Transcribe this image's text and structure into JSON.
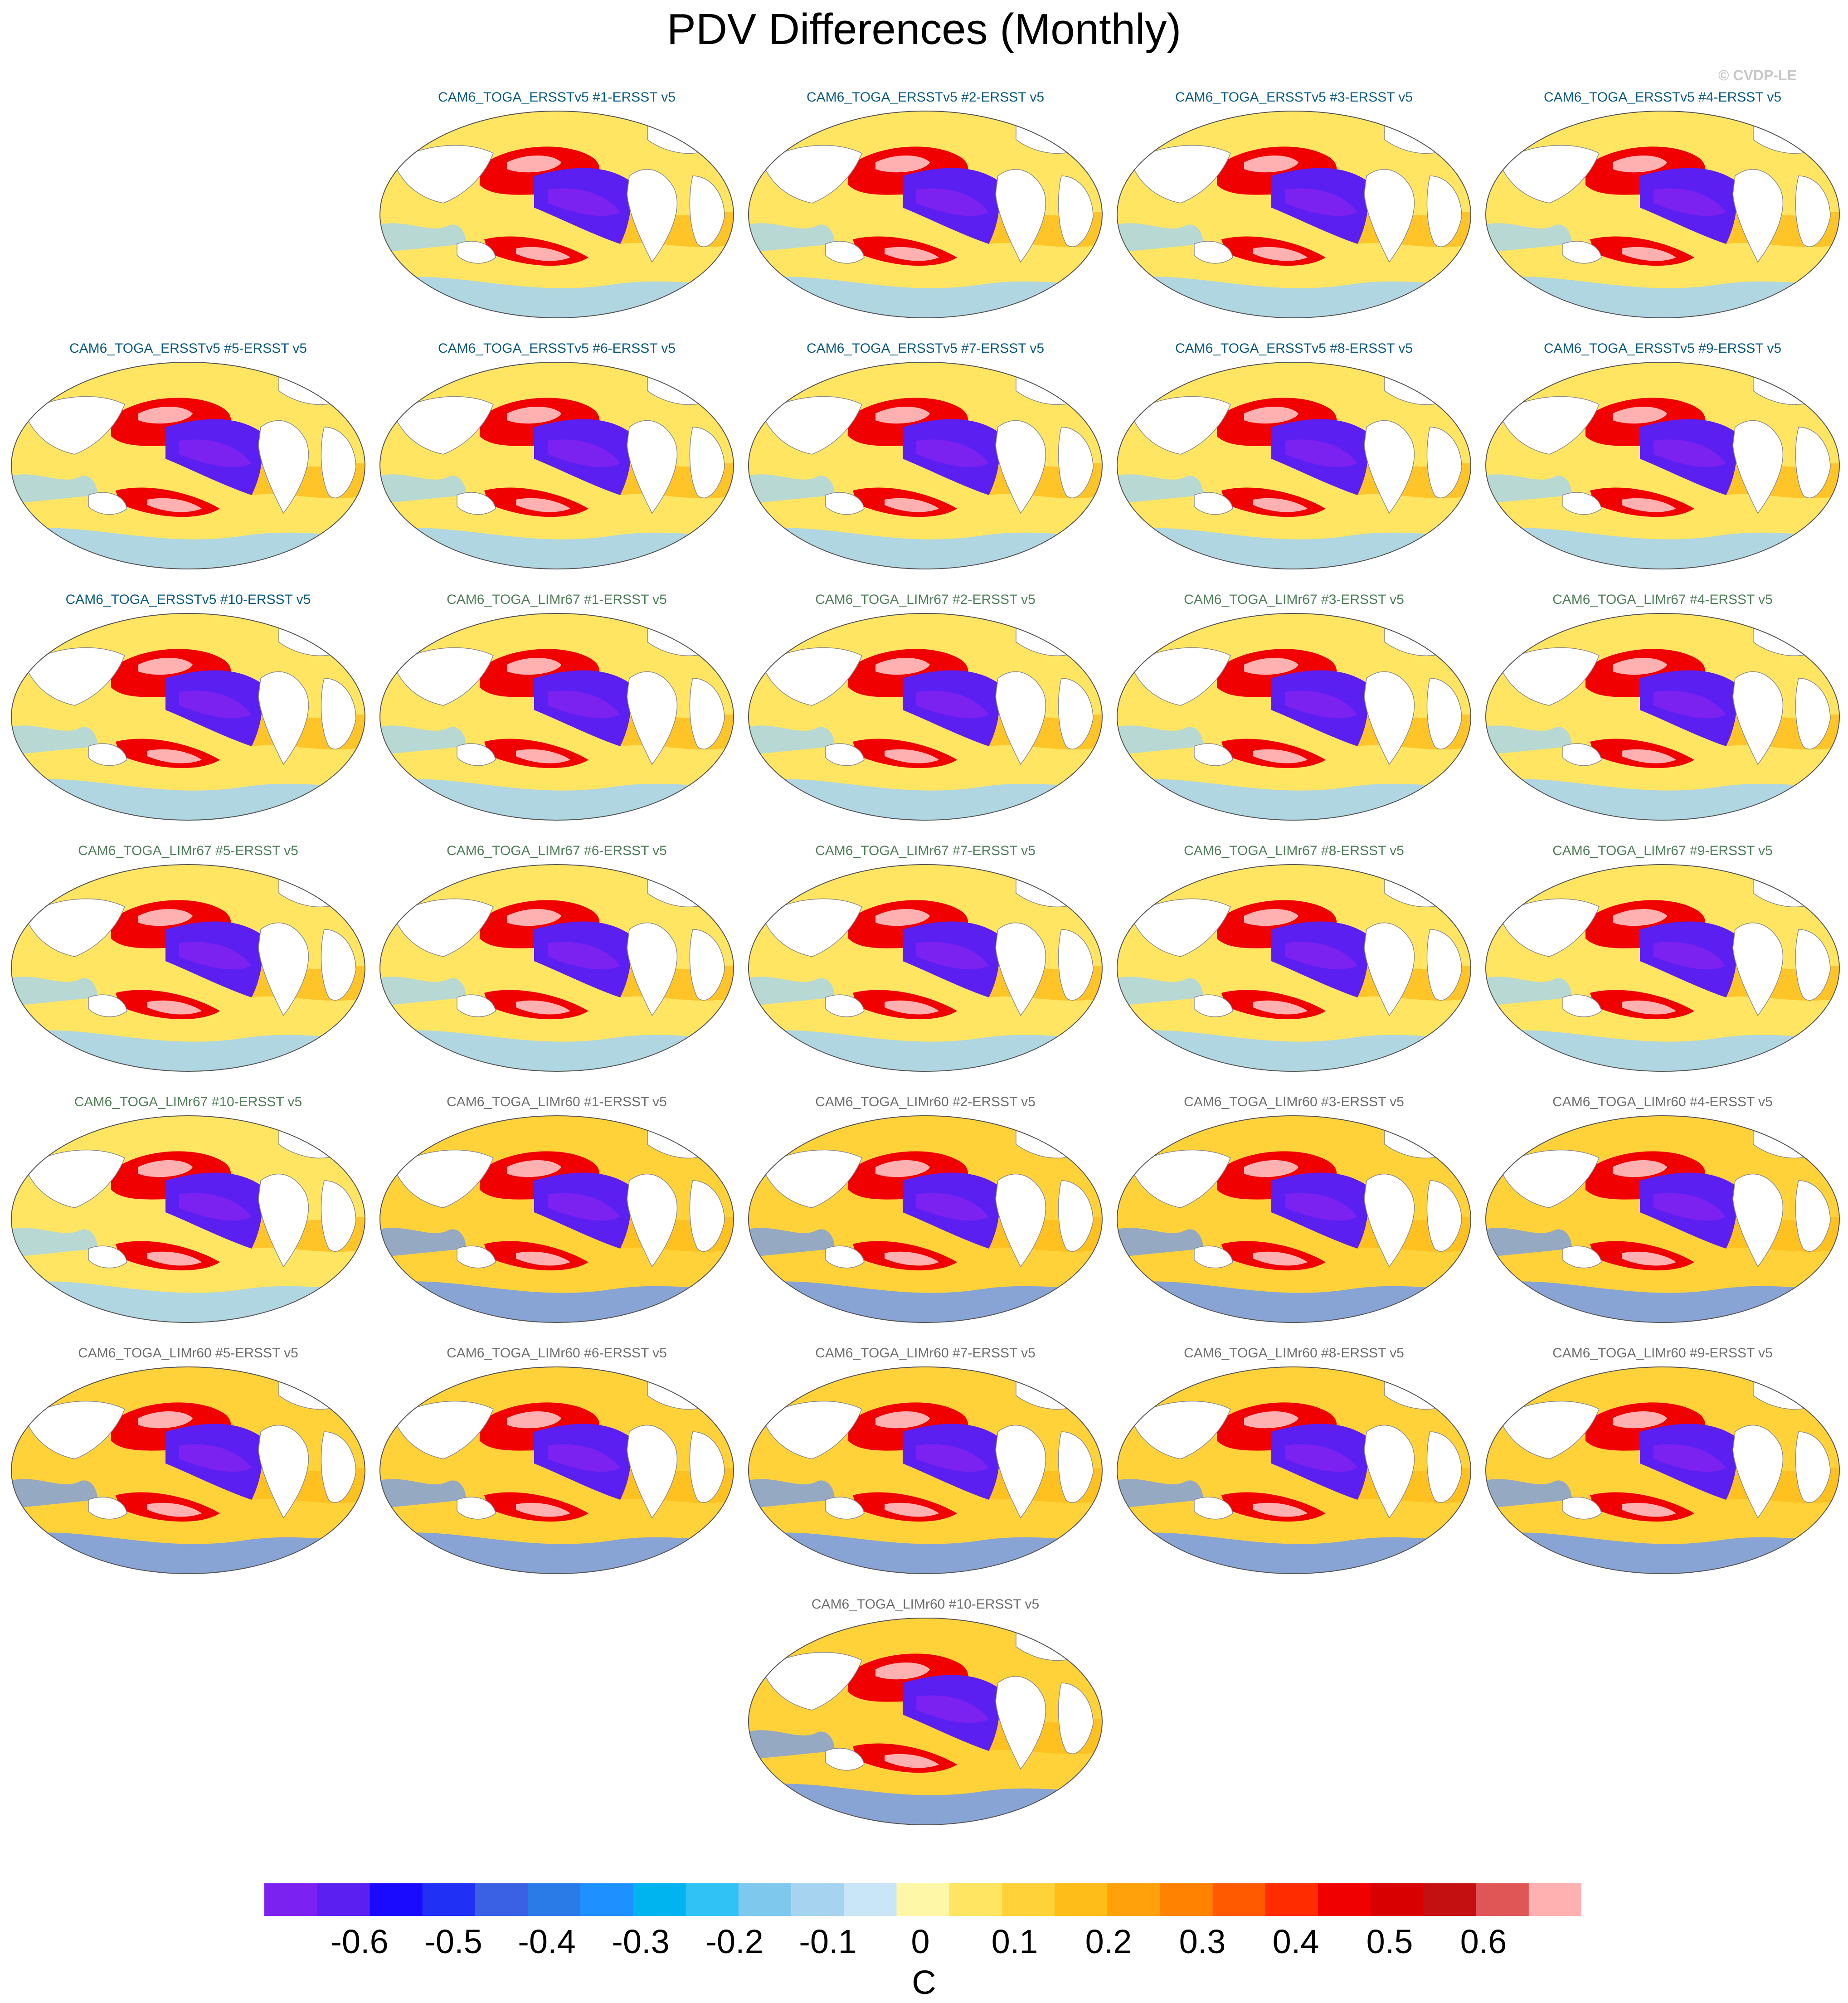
{
  "title": "PDV Differences (Monthly)",
  "watermark": "© CVDP-LE",
  "colors": {
    "ersst_title": "#0a5a7e",
    "lim67_title": "#4f7f58",
    "lim60_title": "#6e6e6e",
    "land": "#ffffff",
    "coast": "#888888"
  },
  "panels": [
    {
      "title": "CAM6_TOGA_ERSSTv5 #1-ERSST v5",
      "group": "ersst"
    },
    {
      "title": "CAM6_TOGA_ERSSTv5 #2-ERSST v5",
      "group": "ersst"
    },
    {
      "title": "CAM6_TOGA_ERSSTv5 #3-ERSST v5",
      "group": "ersst"
    },
    {
      "title": "CAM6_TOGA_ERSSTv5 #4-ERSST v5",
      "group": "ersst"
    },
    {
      "title": "CAM6_TOGA_ERSSTv5 #5-ERSST v5",
      "group": "ersst"
    },
    {
      "title": "CAM6_TOGA_ERSSTv5 #6-ERSST v5",
      "group": "ersst"
    },
    {
      "title": "CAM6_TOGA_ERSSTv5 #7-ERSST v5",
      "group": "ersst"
    },
    {
      "title": "CAM6_TOGA_ERSSTv5 #8-ERSST v5",
      "group": "ersst"
    },
    {
      "title": "CAM6_TOGA_ERSSTv5 #9-ERSST v5",
      "group": "ersst"
    },
    {
      "title": "CAM6_TOGA_ERSSTv5 #10-ERSST v5",
      "group": "ersst"
    },
    {
      "title": "CAM6_TOGA_LIMr67 #1-ERSST v5",
      "group": "lim67"
    },
    {
      "title": "CAM6_TOGA_LIMr67 #2-ERSST v5",
      "group": "lim67"
    },
    {
      "title": "CAM6_TOGA_LIMr67 #3-ERSST v5",
      "group": "lim67"
    },
    {
      "title": "CAM6_TOGA_LIMr67 #4-ERSST v5",
      "group": "lim67"
    },
    {
      "title": "CAM6_TOGA_LIMr67 #5-ERSST v5",
      "group": "lim67"
    },
    {
      "title": "CAM6_TOGA_LIMr67 #6-ERSST v5",
      "group": "lim67"
    },
    {
      "title": "CAM6_TOGA_LIMr67 #7-ERSST v5",
      "group": "lim67"
    },
    {
      "title": "CAM6_TOGA_LIMr67 #8-ERSST v5",
      "group": "lim67"
    },
    {
      "title": "CAM6_TOGA_LIMr67 #9-ERSST v5",
      "group": "lim67"
    },
    {
      "title": "CAM6_TOGA_LIMr67 #10-ERSST v5",
      "group": "lim67"
    },
    {
      "title": "CAM6_TOGA_LIMr60 #1-ERSST v5",
      "group": "lim60"
    },
    {
      "title": "CAM6_TOGA_LIMr60 #2-ERSST v5",
      "group": "lim60"
    },
    {
      "title": "CAM6_TOGA_LIMr60 #3-ERSST v5",
      "group": "lim60"
    },
    {
      "title": "CAM6_TOGA_LIMr60 #4-ERSST v5",
      "group": "lim60"
    },
    {
      "title": "CAM6_TOGA_LIMr60 #5-ERSST v5",
      "group": "lim60"
    },
    {
      "title": "CAM6_TOGA_LIMr60 #6-ERSST v5",
      "group": "lim60"
    },
    {
      "title": "CAM6_TOGA_LIMr60 #7-ERSST v5",
      "group": "lim60"
    },
    {
      "title": "CAM6_TOGA_LIMr60 #8-ERSST v5",
      "group": "lim60"
    },
    {
      "title": "CAM6_TOGA_LIMr60 #9-ERSST v5",
      "group": "lim60"
    },
    {
      "title": "CAM6_TOGA_LIMr60 #10-ERSST v5",
      "group": "lim60"
    }
  ],
  "colorbar": {
    "units": "C",
    "labels": [
      "-0.6",
      "-0.5",
      "-0.4",
      "-0.3",
      "-0.2",
      "-0.1",
      "0",
      "0.1",
      "0.2",
      "0.3",
      "0.4",
      "0.5",
      "0.6"
    ],
    "colors": [
      "#7b21f0",
      "#5b1ff2",
      "#1a0bff",
      "#2030f5",
      "#3a60e3",
      "#2a7be8",
      "#1e90ff",
      "#00b4f0",
      "#30c2f5",
      "#7ec8ee",
      "#a6d4f0",
      "#c8e6f8",
      "#fff7a8",
      "#ffe561",
      "#ffd23a",
      "#ffbd1a",
      "#ffa10a",
      "#ff8200",
      "#ff5a00",
      "#ff2c00",
      "#f00000",
      "#d80000",
      "#c41010",
      "#e05656",
      "#ffb0b0"
    ]
  }
}
